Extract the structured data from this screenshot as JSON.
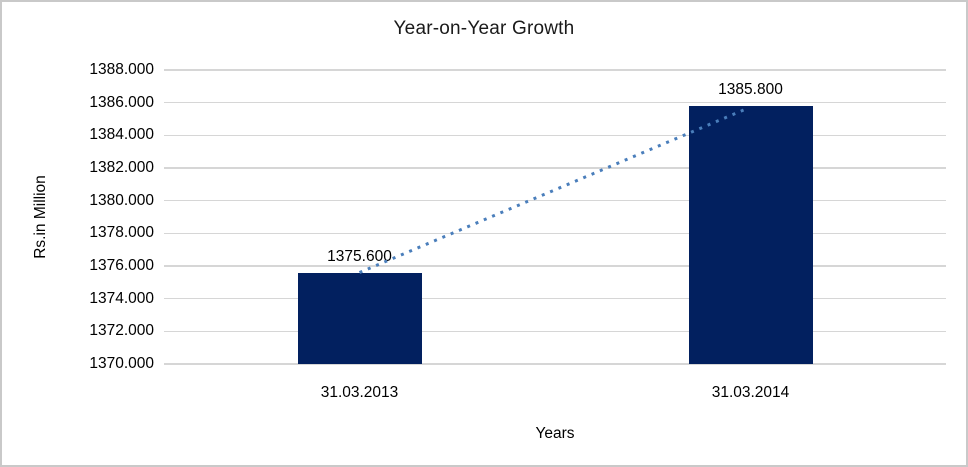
{
  "chart_data": {
    "type": "bar",
    "title": "Year-on-Year Growth",
    "xlabel": "Years",
    "ylabel": "Rs.in Million",
    "categories": [
      "31.03.2013",
      "31.03.2014"
    ],
    "values": [
      1375.6,
      1385.8
    ],
    "value_labels": [
      "1375.600",
      "1385.800"
    ],
    "ylim": [
      1370,
      1388
    ],
    "ytick_step": 2,
    "ytick_labels": [
      "1388.000",
      "1386.000",
      "1384.000",
      "1382.000",
      "1380.000",
      "1378.000",
      "1376.000",
      "1374.000",
      "1372.000",
      "1370.000"
    ],
    "grid": true,
    "legend": false,
    "trendline": {
      "type": "linear",
      "style": "dotted"
    },
    "colors": {
      "bar": "#02205f",
      "trendline": "#4a7ebb",
      "gridline": "#d6d6d6",
      "text": "#000000",
      "frame_border": "#c9c9c9",
      "background": "#ffffff"
    }
  }
}
